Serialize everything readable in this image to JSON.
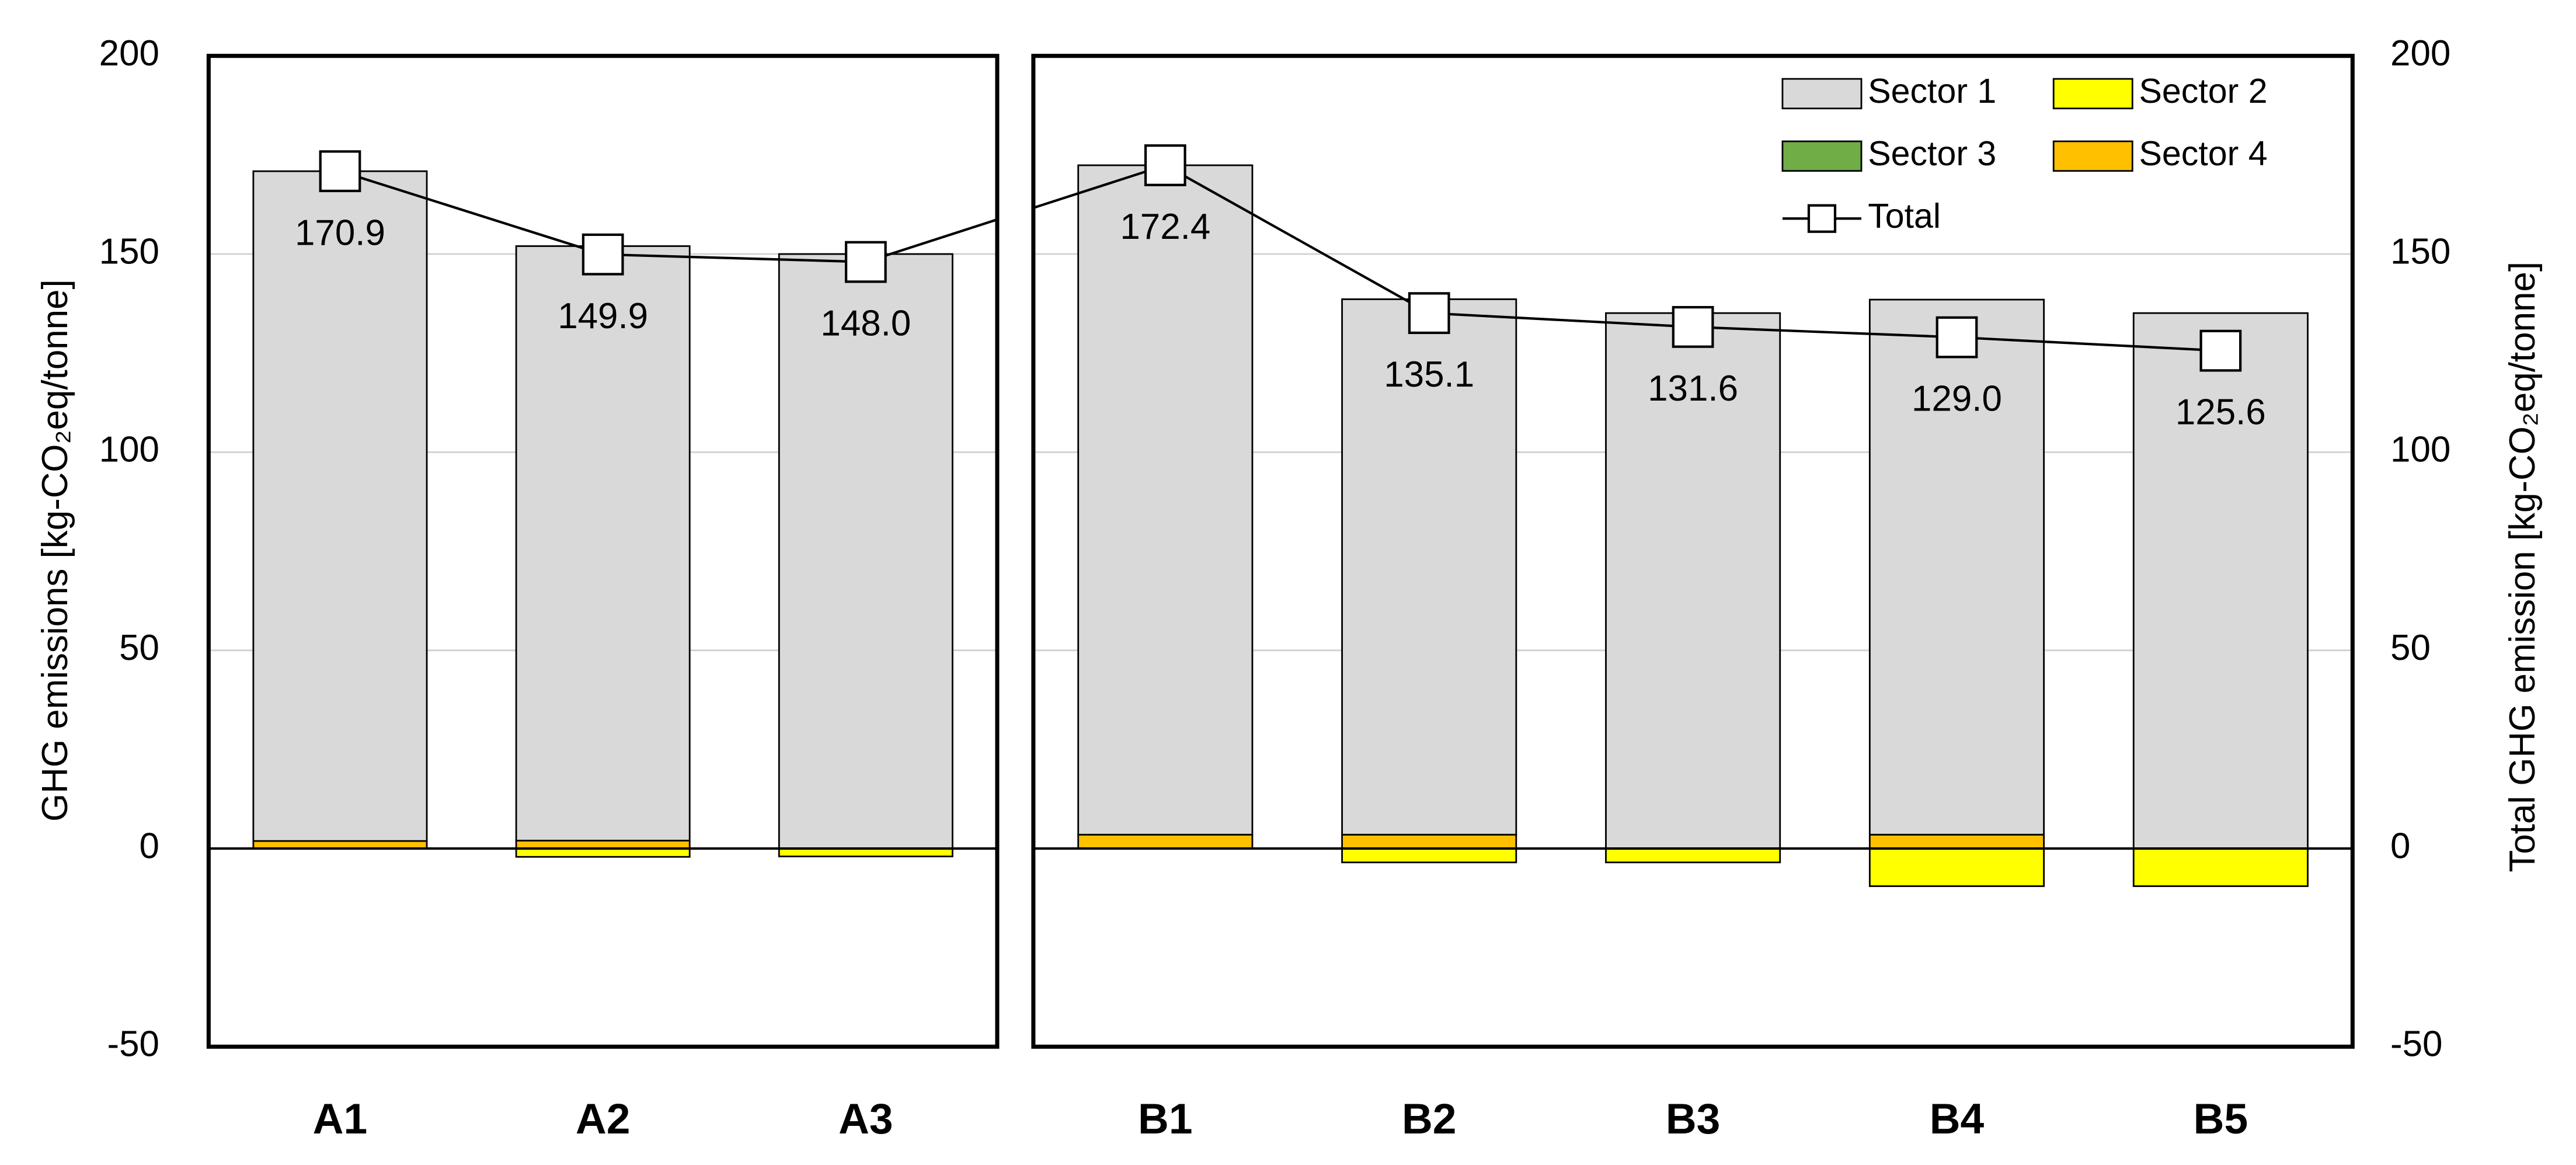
{
  "chart_data": {
    "type": "bar",
    "stacked": true,
    "categories": [
      "A1",
      "A2",
      "A3",
      "B1",
      "B2",
      "B3",
      "B4",
      "B5"
    ],
    "series": [
      {
        "name": "Sector 1",
        "color": "#d9d9d9",
        "values": [
          169.0,
          150.0,
          150.0,
          168.9,
          135.1,
          135.1,
          135.0,
          135.1
        ]
      },
      {
        "name": "Sector 2",
        "color": "#ffff00",
        "values": [
          0,
          -2.1,
          -2.0,
          0,
          -3.5,
          -3.5,
          -9.5,
          -9.5
        ]
      },
      {
        "name": "Sector 3",
        "color": "#70ad47",
        "values": [
          0,
          0,
          0,
          0,
          0,
          0,
          0,
          0
        ]
      },
      {
        "name": "Sector 4",
        "color": "#ffc000",
        "values": [
          1.9,
          2.0,
          0,
          3.5,
          3.5,
          0,
          3.5,
          0
        ]
      },
      {
        "name": "Total",
        "type": "line",
        "marker": "square",
        "color": "#000000",
        "axis": "y2",
        "values": [
          170.9,
          149.9,
          148.0,
          172.4,
          135.1,
          131.6,
          129.0,
          125.6
        ],
        "value_labels": [
          "170.9",
          "149.9",
          "148.0",
          "172.4",
          "135.1",
          "131.6",
          "129.0",
          "125.6"
        ]
      }
    ],
    "ylim": [
      -50,
      200
    ],
    "yticks": [
      -50,
      0,
      50,
      100,
      150,
      200
    ],
    "y2lim": [
      -50,
      200
    ],
    "y2ticks": [
      -50,
      0,
      50,
      100,
      150,
      200
    ],
    "ylabel": "GHG emissions [kg-CO₂eq/tonne]",
    "y2label": "Total GHG emission [kg-CO₂eq/tonne]",
    "negative_tick_color": "#ff0000",
    "grid": true,
    "legend": "upper right"
  }
}
